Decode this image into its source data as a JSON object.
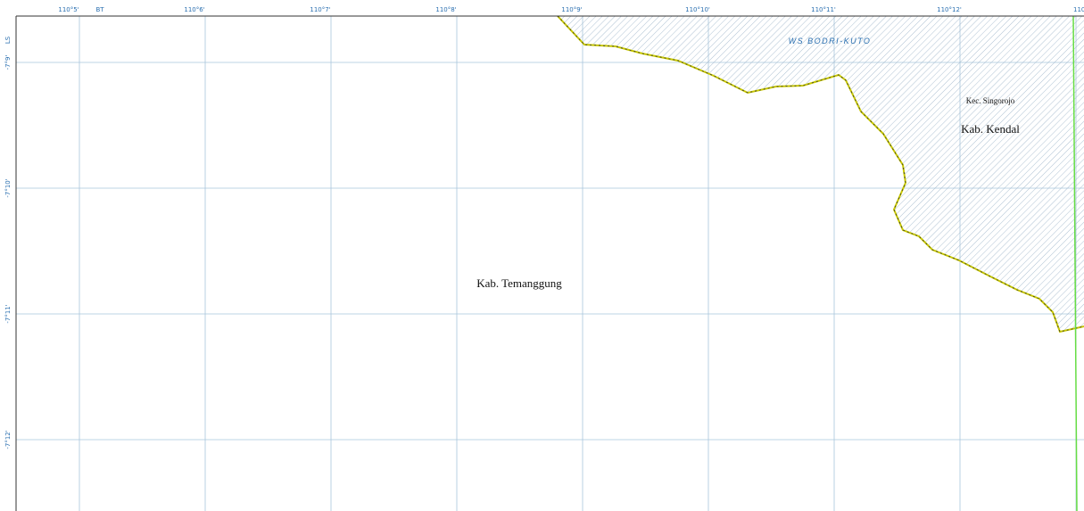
{
  "map": {
    "top_labels": [
      "110°5'",
      "BT",
      "110°6'",
      "110°7'",
      "110°8'",
      "110°9'",
      "110°10'",
      "110°11'",
      "110°12'",
      "110"
    ],
    "left_labels": [
      "LS",
      "-7°9'",
      "-7°10'",
      "-7°11'",
      "-7°12'"
    ],
    "basin": "WS BODRI-KUTO",
    "subdistrict": "Kec. Singorojo",
    "regency_east": "Kab. Kendal",
    "regency_main": "Kab. Temanggung"
  }
}
